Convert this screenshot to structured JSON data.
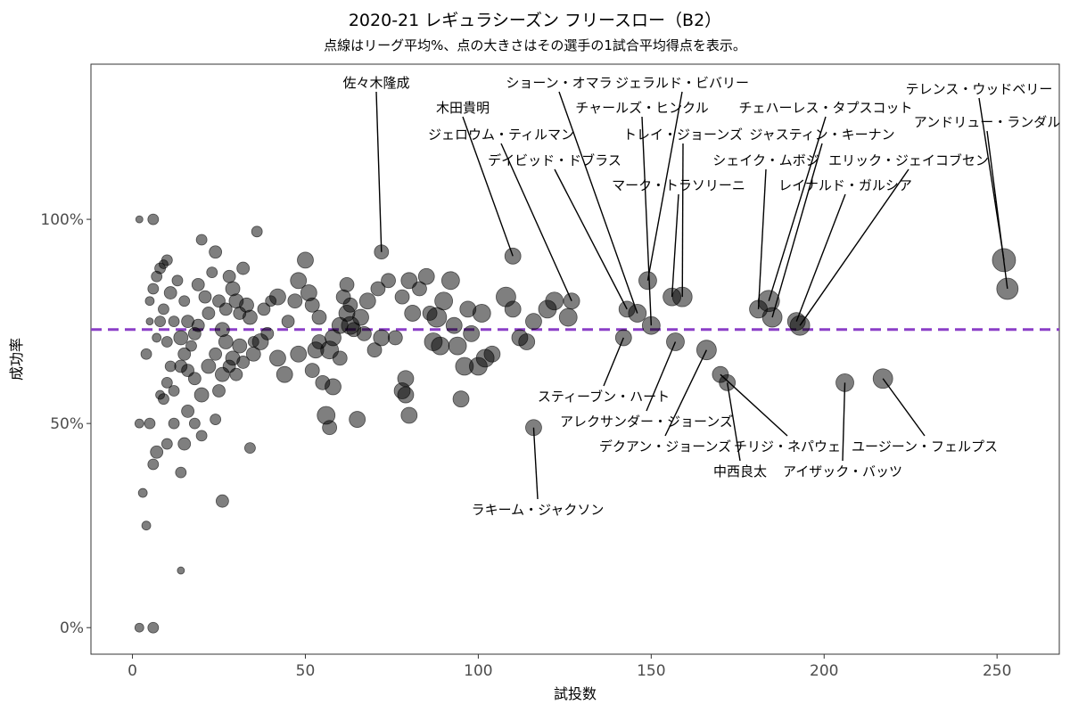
{
  "title": "2020-21 レギュラシーズン フリースロー（B2）",
  "subtitle": "点線はリーグ平均%、点の大きさはその選手の1試合平均得点を表示。",
  "chart_data": {
    "type": "scatter",
    "xlabel": "試投数",
    "ylabel": "成功率",
    "xlim": [
      -12,
      268
    ],
    "ylim": [
      -0.065,
      1.38
    ],
    "x_ticks": [
      0,
      50,
      100,
      150,
      200,
      250
    ],
    "y_ticks": [
      0,
      0.5,
      1.0
    ],
    "y_tick_labels": [
      "0%",
      "50%",
      "100%"
    ],
    "grid": false,
    "reference_line": {
      "y": 0.73,
      "style": "dashed",
      "color": "#8b3fc7"
    },
    "point_color": "#000000",
    "point_opacity": 0.5,
    "labeled_points": [
      {
        "name": "佐々木隆成",
        "x": 72,
        "y": 0.92,
        "size": 8
      },
      {
        "name": "木田貴明",
        "x": 110,
        "y": 0.91,
        "size": 9
      },
      {
        "name": "ジェロウム・ティルマン",
        "x": 127,
        "y": 0.8,
        "size": 9
      },
      {
        "name": "デイビッド・ドブラス",
        "x": 143,
        "y": 0.78,
        "size": 9
      },
      {
        "name": "ショーン・オマラ",
        "x": 146,
        "y": 0.77,
        "size": 10
      },
      {
        "name": "チャールズ・ヒンクル",
        "x": 150,
        "y": 0.74,
        "size": 10
      },
      {
        "name": "ジェラルド・ビバリー",
        "x": 149,
        "y": 0.85,
        "size": 10
      },
      {
        "name": "トレイ・ジョーンズ",
        "x": 159,
        "y": 0.81,
        "size": 11
      },
      {
        "name": "マーク・トラソリーニ",
        "x": 156,
        "y": 0.81,
        "size": 10
      },
      {
        "name": "チェハーレス・タプスコット",
        "x": 184,
        "y": 0.8,
        "size": 12
      },
      {
        "name": "ジャスティン・キーナン",
        "x": 185,
        "y": 0.76,
        "size": 11
      },
      {
        "name": "シェイク・ムボジ",
        "x": 181,
        "y": 0.78,
        "size": 10
      },
      {
        "name": "エリック・ジェイコブセン",
        "x": 193,
        "y": 0.74,
        "size": 11
      },
      {
        "name": "レイナルド・ガルシア",
        "x": 192,
        "y": 0.75,
        "size": 10
      },
      {
        "name": "テレンス・ウッドベリー",
        "x": 252,
        "y": 0.9,
        "size": 13
      },
      {
        "name": "アンドリュー・ランダル",
        "x": 253,
        "y": 0.83,
        "size": 12
      },
      {
        "name": "スティーブン・ハート",
        "x": 142,
        "y": 0.71,
        "size": 9
      },
      {
        "name": "アレクサンダー・ジョーンズ",
        "x": 157,
        "y": 0.7,
        "size": 10
      },
      {
        "name": "デクアン・ジョーンズ",
        "x": 166,
        "y": 0.68,
        "size": 11
      },
      {
        "name": "チリジ・ネパウェ",
        "x": 170,
        "y": 0.62,
        "size": 9
      },
      {
        "name": "中西良太",
        "x": 172,
        "y": 0.6,
        "size": 9
      },
      {
        "name": "アイザック・バッツ",
        "x": 206,
        "y": 0.6,
        "size": 10
      },
      {
        "name": "ユージーン・フェルプス",
        "x": 217,
        "y": 0.61,
        "size": 11
      },
      {
        "name": "ラキーム・ジャクソン",
        "x": 116,
        "y": 0.49,
        "size": 9
      }
    ],
    "other_points": [
      [
        2,
        1.0,
        4
      ],
      [
        6,
        1.0,
        6
      ],
      [
        2,
        0.0,
        5
      ],
      [
        6,
        0.0,
        6
      ],
      [
        2,
        0.5,
        5
      ],
      [
        3,
        0.33,
        5
      ],
      [
        4,
        0.25,
        5
      ],
      [
        14,
        0.14,
        4
      ],
      [
        4,
        0.67,
        6
      ],
      [
        5,
        0.75,
        4
      ],
      [
        5,
        0.8,
        5
      ],
      [
        6,
        0.83,
        6
      ],
      [
        7,
        0.86,
        6
      ],
      [
        8,
        0.88,
        6
      ],
      [
        9,
        0.89,
        5
      ],
      [
        10,
        0.9,
        6
      ],
      [
        7,
        0.71,
        5
      ],
      [
        8,
        0.75,
        6
      ],
      [
        9,
        0.78,
        6
      ],
      [
        10,
        0.7,
        6
      ],
      [
        11,
        0.82,
        7
      ],
      [
        12,
        0.75,
        6
      ],
      [
        13,
        0.85,
        6
      ],
      [
        14,
        0.71,
        8
      ],
      [
        15,
        0.8,
        6
      ],
      [
        16,
        0.75,
        7
      ],
      [
        18,
        0.72,
        7
      ],
      [
        19,
        0.84,
        7
      ],
      [
        20,
        0.95,
        6
      ],
      [
        21,
        0.81,
        7
      ],
      [
        22,
        0.77,
        7
      ],
      [
        23,
        0.87,
        6
      ],
      [
        24,
        0.92,
        7
      ],
      [
        25,
        0.8,
        7
      ],
      [
        26,
        0.73,
        8
      ],
      [
        27,
        0.78,
        7
      ],
      [
        28,
        0.86,
        7
      ],
      [
        29,
        0.83,
        8
      ],
      [
        30,
        0.8,
        8
      ],
      [
        31,
        0.77,
        7
      ],
      [
        32,
        0.88,
        7
      ],
      [
        33,
        0.79,
        8
      ],
      [
        34,
        0.76,
        8
      ],
      [
        36,
        0.97,
        6
      ],
      [
        37,
        0.7,
        9
      ],
      [
        38,
        0.78,
        7
      ],
      [
        39,
        0.72,
        7
      ],
      [
        8,
        0.57,
        5
      ],
      [
        9,
        0.56,
        6
      ],
      [
        10,
        0.6,
        6
      ],
      [
        11,
        0.64,
        6
      ],
      [
        12,
        0.58,
        6
      ],
      [
        14,
        0.64,
        7
      ],
      [
        15,
        0.67,
        7
      ],
      [
        16,
        0.63,
        7
      ],
      [
        17,
        0.69,
        6
      ],
      [
        18,
        0.61,
        7
      ],
      [
        19,
        0.74,
        7
      ],
      [
        20,
        0.57,
        8
      ],
      [
        22,
        0.64,
        8
      ],
      [
        24,
        0.67,
        7
      ],
      [
        25,
        0.58,
        7
      ],
      [
        26,
        0.62,
        8
      ],
      [
        27,
        0.7,
        8
      ],
      [
        28,
        0.64,
        7
      ],
      [
        29,
        0.66,
        8
      ],
      [
        30,
        0.62,
        7
      ],
      [
        31,
        0.69,
        8
      ],
      [
        32,
        0.65,
        7
      ],
      [
        35,
        0.67,
        8
      ],
      [
        5,
        0.5,
        6
      ],
      [
        6,
        0.4,
        6
      ],
      [
        7,
        0.43,
        7
      ],
      [
        10,
        0.45,
        6
      ],
      [
        12,
        0.5,
        6
      ],
      [
        14,
        0.38,
        6
      ],
      [
        15,
        0.45,
        7
      ],
      [
        16,
        0.53,
        7
      ],
      [
        18,
        0.5,
        6
      ],
      [
        20,
        0.47,
        6
      ],
      [
        24,
        0.51,
        6
      ],
      [
        26,
        0.31,
        7
      ],
      [
        34,
        0.44,
        6
      ],
      [
        35,
        0.7,
        6
      ],
      [
        40,
        0.8,
        6
      ],
      [
        42,
        0.81,
        9
      ],
      [
        44,
        0.62,
        9
      ],
      [
        45,
        0.75,
        7
      ],
      [
        47,
        0.8,
        8
      ],
      [
        48,
        0.85,
        9
      ],
      [
        50,
        0.9,
        9
      ],
      [
        51,
        0.82,
        9
      ],
      [
        52,
        0.79,
        8
      ],
      [
        53,
        0.68,
        9
      ],
      [
        54,
        0.7,
        8
      ],
      [
        55,
        0.6,
        8
      ],
      [
        56,
        0.52,
        10
      ],
      [
        57,
        0.68,
        10
      ],
      [
        58,
        0.71,
        9
      ],
      [
        60,
        0.74,
        9
      ],
      [
        61,
        0.81,
        8
      ],
      [
        62,
        0.84,
        8
      ],
      [
        63,
        0.79,
        8
      ],
      [
        64,
        0.73,
        8
      ],
      [
        65,
        0.51,
        9
      ],
      [
        66,
        0.76,
        9
      ],
      [
        67,
        0.72,
        8
      ],
      [
        68,
        0.8,
        9
      ],
      [
        70,
        0.68,
        8
      ],
      [
        71,
        0.83,
        8
      ],
      [
        72,
        0.71,
        9
      ],
      [
        74,
        0.85,
        8
      ],
      [
        76,
        0.71,
        8
      ],
      [
        78,
        0.81,
        8
      ],
      [
        79,
        0.61,
        9
      ],
      [
        80,
        0.85,
        9
      ],
      [
        81,
        0.77,
        9
      ],
      [
        83,
        0.83,
        8
      ],
      [
        85,
        0.86,
        9
      ],
      [
        86,
        0.77,
        8
      ],
      [
        87,
        0.7,
        10
      ],
      [
        88,
        0.76,
        11
      ],
      [
        89,
        0.69,
        10
      ],
      [
        90,
        0.8,
        10
      ],
      [
        92,
        0.85,
        10
      ],
      [
        93,
        0.74,
        9
      ],
      [
        94,
        0.69,
        10
      ],
      [
        95,
        0.56,
        9
      ],
      [
        96,
        0.64,
        10
      ],
      [
        97,
        0.78,
        9
      ],
      [
        98,
        0.72,
        9
      ],
      [
        100,
        0.64,
        10
      ],
      [
        101,
        0.77,
        10
      ],
      [
        102,
        0.66,
        10
      ],
      [
        104,
        0.67,
        9
      ],
      [
        108,
        0.81,
        11
      ],
      [
        110,
        0.78,
        9
      ],
      [
        112,
        0.71,
        9
      ],
      [
        114,
        0.7,
        9
      ],
      [
        116,
        0.75,
        9
      ],
      [
        120,
        0.78,
        10
      ],
      [
        122,
        0.8,
        10
      ],
      [
        126,
        0.76,
        10
      ],
      [
        57,
        0.49,
        8
      ],
      [
        58,
        0.59,
        9
      ],
      [
        60,
        0.66,
        8
      ],
      [
        62,
        0.77,
        9
      ],
      [
        63,
        0.74,
        10
      ],
      [
        78,
        0.58,
        9
      ],
      [
        79,
        0.57,
        9
      ],
      [
        80,
        0.52,
        9
      ],
      [
        42,
        0.66,
        9
      ],
      [
        48,
        0.67,
        9
      ],
      [
        52,
        0.63,
        8
      ],
      [
        54,
        0.76,
        8
      ]
    ]
  }
}
